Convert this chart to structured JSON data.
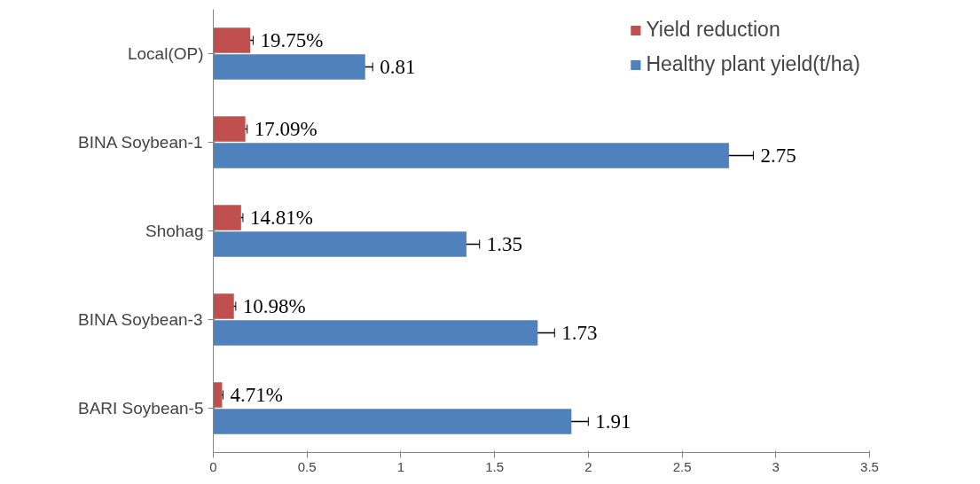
{
  "chart_data": {
    "type": "bar",
    "orientation": "horizontal",
    "categories": [
      "Local(OP)",
      "BINA Soybean-1",
      "Shohag",
      "BINA Soybean-3",
      "BARI Soybean-5"
    ],
    "series": [
      {
        "name": "Yield reduction",
        "color": "#c0504d",
        "values": [
          0.1975,
          0.1709,
          0.1481,
          0.1098,
          0.0471
        ],
        "errors": [
          0.015,
          0.01,
          0.01,
          0.01,
          0.005
        ],
        "value_labels": [
          "19.75%",
          "17.09%",
          "14.81%",
          "10.98%",
          "4.71%"
        ]
      },
      {
        "name": "Healthy plant yield(t/ha)",
        "color": "#4f81bd",
        "values": [
          0.81,
          2.75,
          1.35,
          1.73,
          1.91
        ],
        "errors": [
          0.04,
          0.13,
          0.07,
          0.09,
          0.09
        ],
        "value_labels": [
          "0.81",
          "2.75",
          "1.35",
          "1.73",
          "1.91"
        ]
      }
    ],
    "xlim": [
      0,
      3.5
    ],
    "xticks": [
      0,
      0.5,
      1,
      1.5,
      2,
      2.5,
      3,
      3.5
    ],
    "grid": false,
    "legend": "top right"
  }
}
